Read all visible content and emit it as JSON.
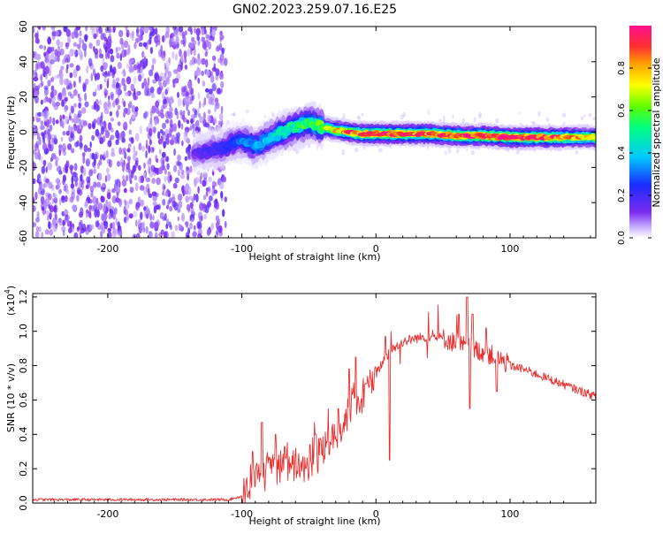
{
  "title": "GN02.2023.259.07.16.E25",
  "chart_data": [
    {
      "type": "heatmap",
      "name": "spectrogram",
      "title": "GN02.2023.259.07.16.E25",
      "xlabel": "Height of straight line (km)",
      "ylabel": "Frequency (Hz)",
      "xlim": [
        -256,
        164
      ],
      "ylim": [
        -60,
        60
      ],
      "xticks": [
        -200,
        -100,
        0,
        100
      ],
      "xtick_labels": [
        "-200",
        "-100",
        "0",
        "100"
      ],
      "yticks": [
        -60,
        -40,
        -20,
        0,
        20,
        40,
        60
      ],
      "ytick_labels": [
        "-60",
        "-40",
        "-20",
        "0",
        "20",
        "40",
        "60"
      ],
      "colorbar": {
        "label": "Normalized spectral amplitude",
        "range": [
          0,
          1
        ],
        "ticks": [
          0,
          0.2,
          0.4,
          0.6,
          0.8
        ],
        "tick_labels": [
          "0.0",
          "0.2",
          "0.4",
          "0.6",
          "0.8"
        ]
      },
      "noise_region_x": [
        -256,
        -112
      ],
      "signal_track": {
        "x": [
          -135,
          -120,
          -110,
          -100,
          -90,
          -80,
          -70,
          -60,
          -50,
          -40,
          -30,
          -20,
          -10,
          0,
          20,
          40,
          60,
          80,
          100,
          120,
          140,
          164
        ],
        "y": [
          -12,
          -10,
          -7,
          -5,
          -8,
          -4,
          0,
          3,
          5,
          3,
          1,
          0,
          -1,
          -1,
          -1,
          -1,
          -2,
          -2,
          -3,
          -3,
          -3,
          -3
        ],
        "amplitude": [
          0.15,
          0.2,
          0.25,
          0.3,
          0.35,
          0.4,
          0.45,
          0.5,
          0.55,
          0.65,
          0.75,
          0.85,
          0.9,
          0.95,
          0.9,
          0.9,
          0.95,
          0.95,
          1.0,
          0.95,
          0.85,
          0.75
        ]
      }
    },
    {
      "type": "line",
      "name": "snr",
      "xlabel": "Height of straight line (km)",
      "ylabel": "SNR (10 * v/v)",
      "scale_label": "(x10",
      "scale_exponent": "4",
      "scale_close": ")",
      "xlim": [
        -256,
        164
      ],
      "ylim": [
        0,
        1.22
      ],
      "xticks": [
        -200,
        -100,
        0,
        100
      ],
      "xtick_labels": [
        "-200",
        "-100",
        "0",
        "100"
      ],
      "yticks": [
        0,
        0.2,
        0.4,
        0.6,
        0.8,
        1.0,
        1.2
      ],
      "ytick_labels": [
        "0.0",
        "0.2",
        "0.4",
        "0.6",
        "0.8",
        "1.0",
        "1.2"
      ],
      "color": "#e83030",
      "series": [
        {
          "name": "SNR",
          "x": [
            -256,
            -200,
            -150,
            -110,
            -100,
            -95,
            -90,
            -80,
            -70,
            -60,
            -50,
            -40,
            -30,
            -20,
            -10,
            0,
            5,
            10,
            20,
            30,
            40,
            50,
            60,
            70,
            80,
            90,
            100,
            110,
            120,
            130,
            140,
            150,
            164
          ],
          "y": [
            0.02,
            0.02,
            0.02,
            0.02,
            0.04,
            0.08,
            0.15,
            0.18,
            0.2,
            0.22,
            0.25,
            0.3,
            0.4,
            0.55,
            0.65,
            0.75,
            0.82,
            0.88,
            0.94,
            0.96,
            0.97,
            0.96,
            0.93,
            0.9,
            0.88,
            0.85,
            0.8,
            0.78,
            0.75,
            0.72,
            0.69,
            0.66,
            0.62
          ]
        }
      ],
      "spikes": [
        {
          "x": -92,
          "y": 0.3
        },
        {
          "x": -85,
          "y": 0.47
        },
        {
          "x": -75,
          "y": 0.4
        },
        {
          "x": -68,
          "y": 0.33
        },
        {
          "x": -45,
          "y": 0.4
        },
        {
          "x": -28,
          "y": 0.55
        },
        {
          "x": -20,
          "y": 0.78
        },
        {
          "x": -15,
          "y": 0.85
        },
        {
          "x": 7,
          "y": 0.97
        },
        {
          "x": 10,
          "y": 0.25
        },
        {
          "x": 62,
          "y": 1.1
        },
        {
          "x": 68,
          "y": 1.2
        },
        {
          "x": 72,
          "y": 1.1
        },
        {
          "x": 82,
          "y": 1.02
        },
        {
          "x": 90,
          "y": 0.65
        },
        {
          "x": 70,
          "y": 0.55
        }
      ]
    }
  ]
}
